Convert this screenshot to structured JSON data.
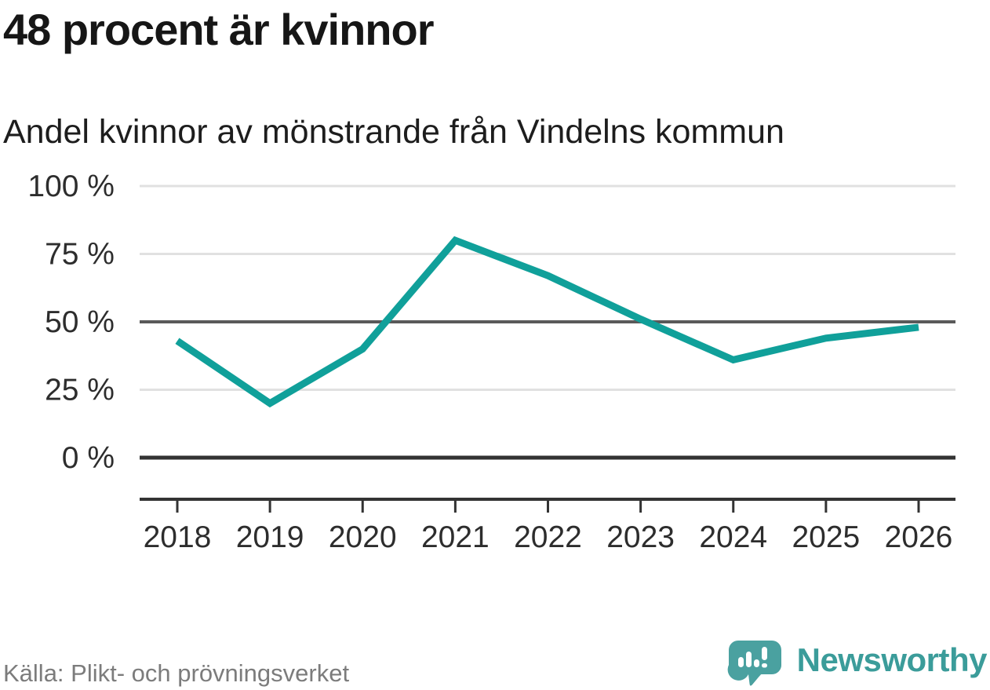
{
  "header": {
    "title": "48 procent är kvinnor",
    "subtitle": "Andel kvinnor av mönstrande från Vindelns kommun"
  },
  "chart_data": {
    "type": "line",
    "title": "48 procent är kvinnor",
    "subtitle": "Andel kvinnor av mönstrande från Vindelns kommun",
    "categories": [
      "2018",
      "2019",
      "2020",
      "2021",
      "2022",
      "2023",
      "2024",
      "2025",
      "2026"
    ],
    "values": [
      43,
      20,
      40,
      80,
      67,
      51,
      36,
      44,
      48
    ],
    "unit": "%",
    "xlabel": "",
    "ylabel": "",
    "ylim": [
      0,
      100
    ],
    "yticks": [
      {
        "value": 100,
        "label": "100 %"
      },
      {
        "value": 75,
        "label": "75 %"
      },
      {
        "value": 50,
        "label": "50 %"
      },
      {
        "value": 25,
        "label": "25 %"
      },
      {
        "value": 0,
        "label": "0 %"
      }
    ],
    "emphasized_gridline": 50,
    "grid": true,
    "legend_position": "none",
    "line_color": "#10a09a",
    "grid_color_light": "#e1e1e1",
    "grid_color_mid": "#5a5a5a",
    "grid_color_zero": "#333333",
    "axis_color": "#333333",
    "tick_label_color": "#2d2d2d"
  },
  "footer": {
    "source": "Källa: Plikt- och prövningsverket",
    "brand": "Newsworthy",
    "brand_color": "#3b9c9a",
    "logo_color": "#4aa1a0"
  },
  "icons": {
    "logo": "newsworthy-speech-bubble-barchart-icon"
  }
}
